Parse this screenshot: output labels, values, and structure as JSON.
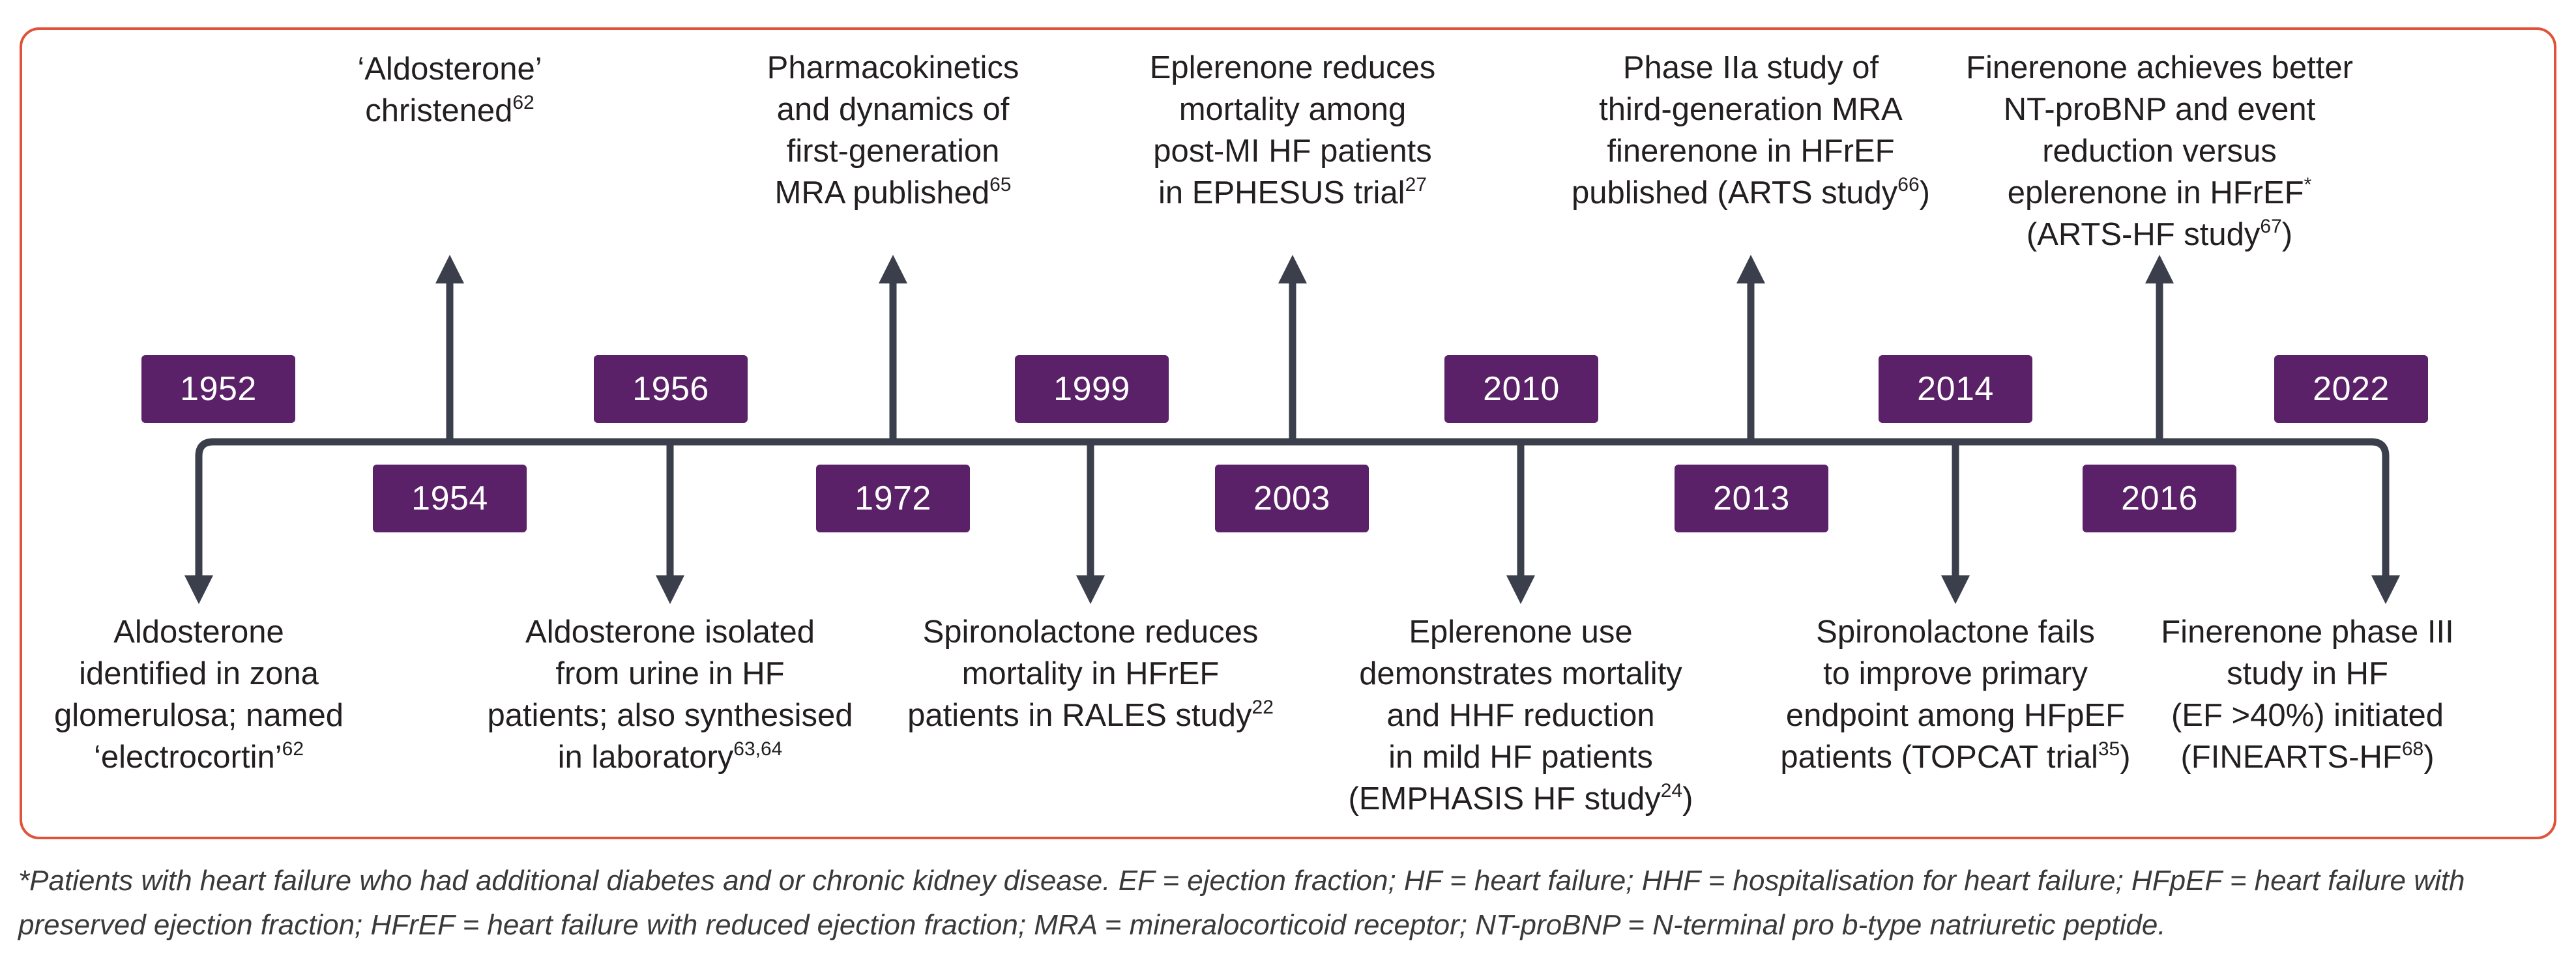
{
  "years": {
    "y1952": "1952",
    "y1954": "1954",
    "y1956": "1956",
    "y1972": "1972",
    "y1999": "1999",
    "y2003": "2003",
    "y2010": "2010",
    "y2013": "2013",
    "y2014": "2014",
    "y2016": "2016",
    "y2022": "2022"
  },
  "events": {
    "e1952": {
      "l1": "Aldosterone",
      "l2": "identified in zona",
      "l3": "glomerulosa; named",
      "l4": "‘electrocortin’",
      "ref": "62"
    },
    "e1954": {
      "l1": "‘Aldosterone’",
      "l2": "christened",
      "ref": "62"
    },
    "e1956": {
      "l1": "Aldosterone isolated",
      "l2": "from urine in HF",
      "l3": "patients; also synthesised",
      "l4": "in laboratory",
      "ref": "63,64"
    },
    "e1972": {
      "l1": "Pharmacokinetics",
      "l2": "and dynamics of",
      "l3": "first-generation",
      "l4": "MRA published",
      "ref": "65"
    },
    "e1999": {
      "l1": "Spironolactone reduces",
      "l2": "mortality in HFrEF",
      "l3": "patients in RALES study",
      "ref": "22"
    },
    "e2003": {
      "l1": "Eplerenone reduces",
      "l2": "mortality among",
      "l3": "post-MI HF patients",
      "l4": "in EPHESUS trial",
      "ref": "27"
    },
    "e2010": {
      "l1": "Eplerenone use",
      "l2": "demonstrates mortality",
      "l3": "and HHF reduction",
      "l4": "in mild HF patients",
      "l5a": "(EMPHASIS HF study",
      "ref": "24",
      "l5b": ")"
    },
    "e2013": {
      "l1": "Phase IIa study of",
      "l2": "third-generation MRA",
      "l3": "finerenone in HFrEF",
      "l4a": "published (ARTS study",
      "ref": "66",
      "l4b": ")"
    },
    "e2014": {
      "l1": "Spironolactone fails",
      "l2": "to improve primary",
      "l3": "endpoint among HFpEF",
      "l4a": "patients (TOPCAT trial",
      "ref": "35",
      "l4b": ")"
    },
    "e2016": {
      "l1": "Finerenone achieves better",
      "l2": "NT-proBNP and event",
      "l3": "reduction versus",
      "l4a": "eplerenone in HFrEF",
      "mark": "*",
      "l5a": "(ARTS-HF study",
      "ref": "67",
      "l5b": ")"
    },
    "e2022": {
      "l1": "Finerenone phase III",
      "l2": "study in HF",
      "l3": "(EF >40%) initiated",
      "l4a": "(FINEARTS-HF",
      "ref": "68",
      "l4b": ")"
    }
  },
  "footnote": "*Patients with heart failure who had additional diabetes and or chronic kidney disease. EF = ejection fraction; HF = heart failure; HHF = hospitalisation for heart failure; HFpEF = heart failure with preserved ejection fraction; HFrEF = heart failure with reduced ejection fraction; MRA = mineralocorticoid receptor; NT-proBNP = N-terminal pro b-type natriuretic peptide.",
  "colors": {
    "box": "#5a2168",
    "line": "#3b3f4c",
    "frame": "#e0523a"
  }
}
